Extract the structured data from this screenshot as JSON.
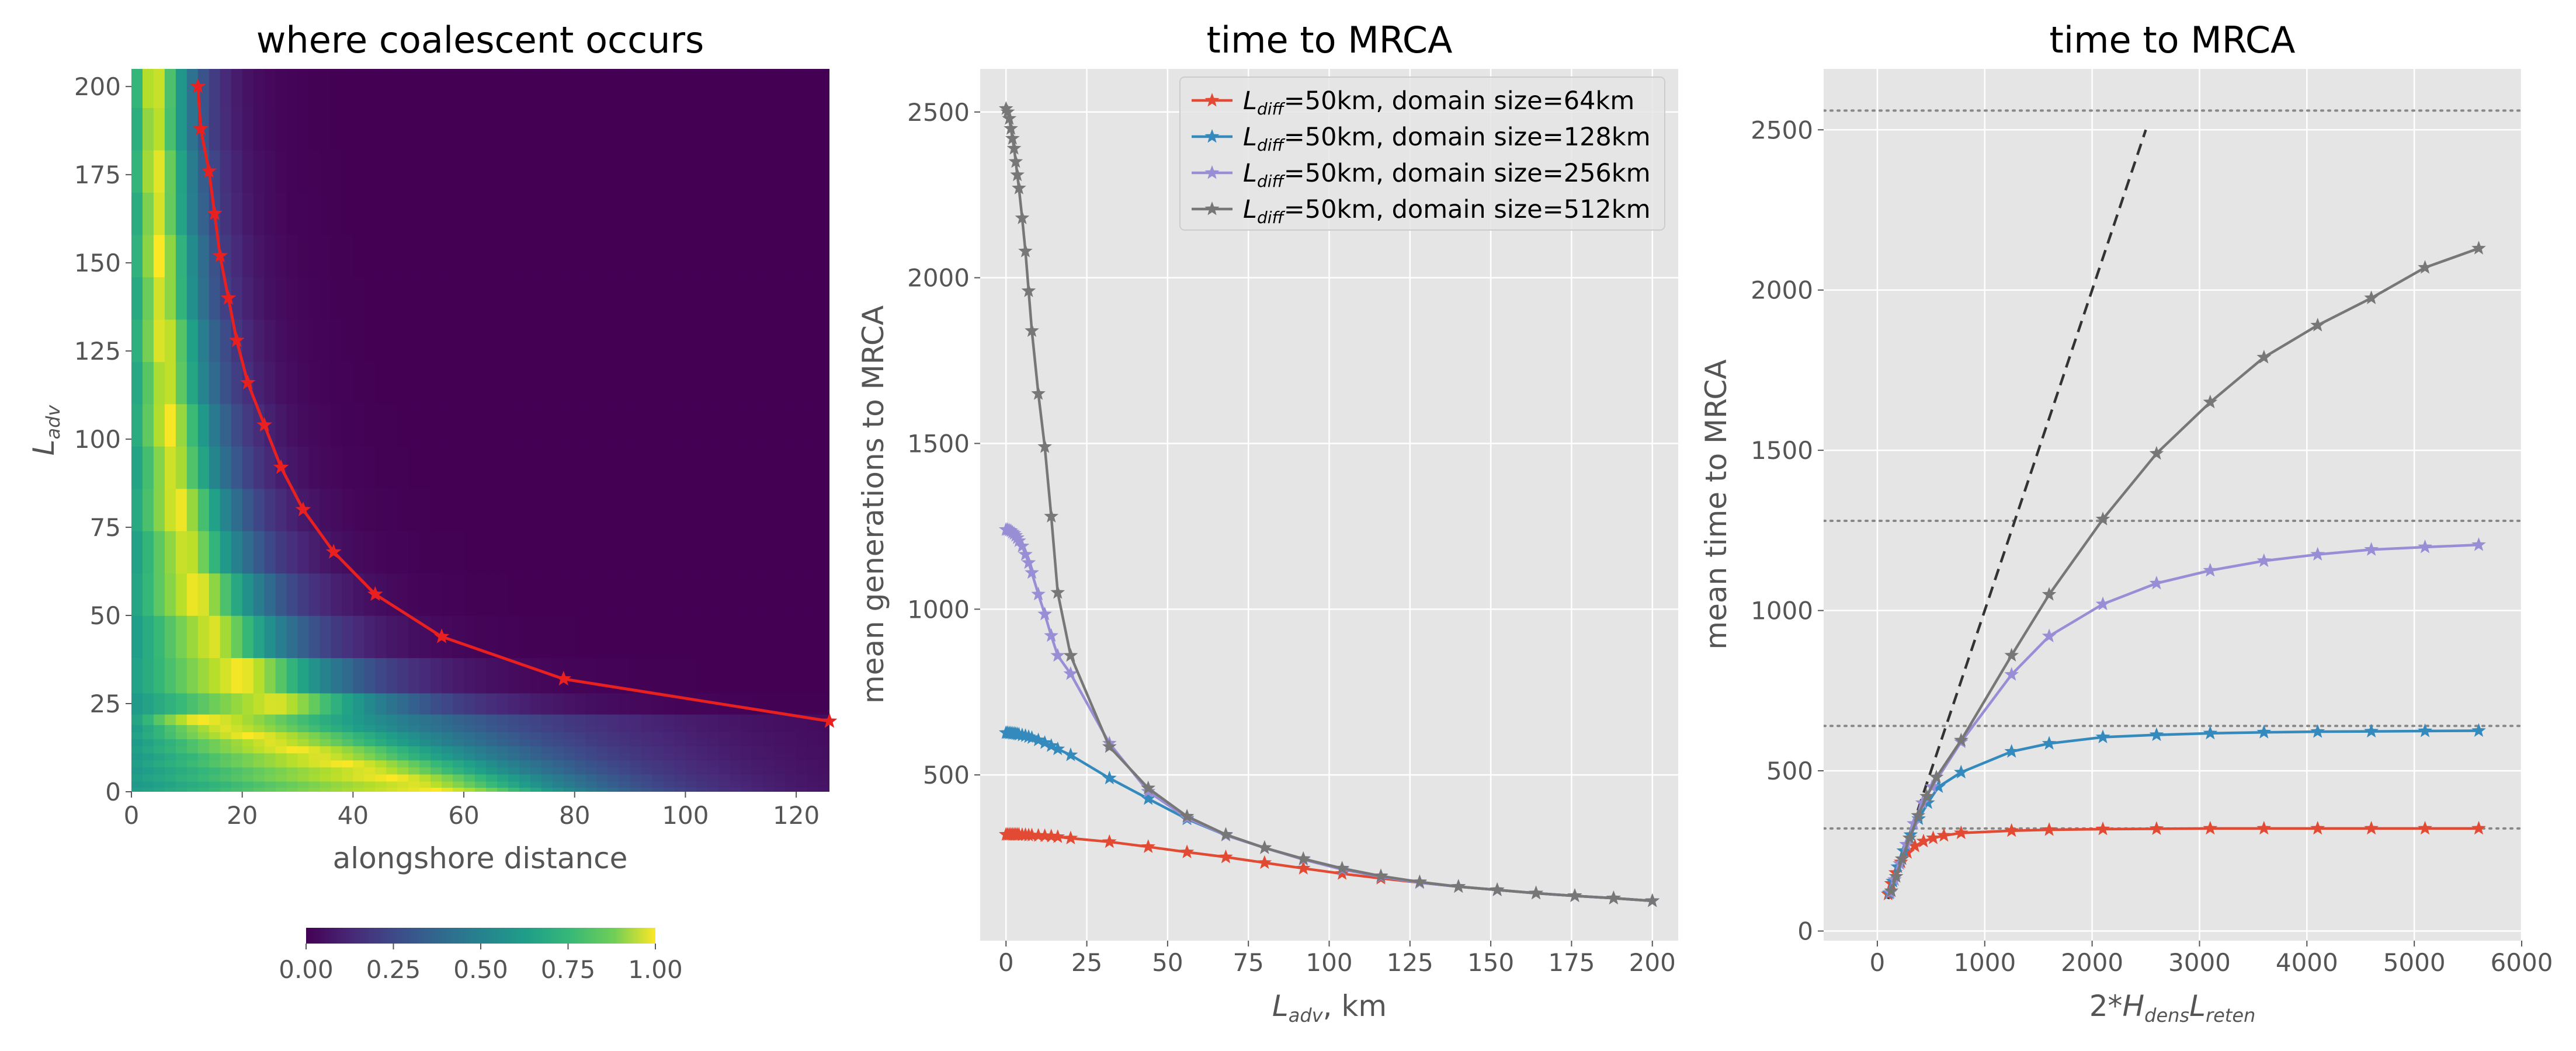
{
  "chart_data": [
    {
      "type": "heatmap",
      "title": "where coalescent occurs",
      "xlabel": "alongshore distance",
      "ylabel": {
        "main": "L",
        "sub": "adv"
      },
      "xlim": [
        0,
        126
      ],
      "ylim": [
        0,
        205
      ],
      "xticks": [
        "0",
        "20",
        "40",
        "60",
        "80",
        "100",
        "120"
      ],
      "yticks": [
        "0",
        "25",
        "50",
        "75",
        "100",
        "125",
        "150",
        "175",
        "200"
      ],
      "colormap": "viridis",
      "colorbar": {
        "ticks": [
          "0.00",
          "0.25",
          "0.50",
          "0.75",
          "1.00"
        ],
        "range": [
          0,
          1
        ]
      },
      "rows_L_adv": [
        0.5,
        2,
        4,
        6,
        8,
        10,
        12,
        14,
        16,
        18,
        20,
        24,
        32,
        44,
        56,
        68,
        80,
        92,
        104,
        116,
        128,
        140,
        152,
        164,
        176,
        188,
        200
      ],
      "overlay_line": {
        "color": "#e8201f",
        "x": [
          12,
          12.5,
          14,
          15,
          16,
          17.5,
          19,
          21,
          24,
          27,
          31,
          36.5,
          44,
          56,
          78,
          126
        ],
        "y": [
          200,
          188,
          176,
          164,
          152,
          140,
          128,
          116,
          104,
          92,
          80,
          68,
          56,
          44,
          32,
          20
        ]
      }
    },
    {
      "type": "line",
      "title": "time to MRCA",
      "xlabel": {
        "main": "L",
        "sub": "adv",
        "rest": ", km"
      },
      "ylabel": "mean generations to MRCA",
      "xlim": [
        -8,
        208
      ],
      "ylim": [
        0,
        2630
      ],
      "xticks": [
        "0",
        "25",
        "50",
        "75",
        "100",
        "125",
        "150",
        "175",
        "200"
      ],
      "yticks": [
        "500",
        "1000",
        "1500",
        "2000",
        "2500"
      ],
      "legend": {
        "position": "top-right"
      },
      "series": [
        {
          "name": {
            "main": "L",
            "sub": "diff",
            "rest": "=50km, domain size=64km"
          },
          "color": "#e24a33",
          "x": [
            0,
            0.5,
            1,
            1.5,
            2,
            2.5,
            3,
            3.5,
            4,
            5,
            6,
            7,
            8,
            10,
            12,
            14,
            16,
            20,
            32,
            44,
            56,
            68,
            80,
            92,
            104,
            116,
            128,
            140,
            152,
            164,
            176,
            188,
            200
          ],
          "y": [
            320,
            320,
            320,
            320,
            320,
            320,
            320,
            320,
            320,
            319,
            319,
            318,
            318,
            317,
            316,
            315,
            313,
            309,
            298,
            283,
            267,
            252,
            235,
            218,
            202,
            188,
            175,
            163,
            153,
            143,
            135,
            128,
            120
          ]
        },
        {
          "name": {
            "main": "L",
            "sub": "diff",
            "rest": "=50km, domain size=128km"
          },
          "color": "#348abd",
          "x": [
            0,
            0.5,
            1,
            1.5,
            2,
            2.5,
            3,
            3.5,
            4,
            5,
            6,
            7,
            8,
            10,
            12,
            14,
            16,
            20,
            32,
            44,
            56,
            68,
            80,
            92,
            104,
            116,
            128,
            140,
            152,
            164,
            176,
            188,
            200
          ],
          "y": [
            627,
            627,
            626,
            626,
            625,
            625,
            624,
            623,
            622,
            620,
            618,
            615,
            612,
            605,
            597,
            588,
            578,
            560,
            490,
            428,
            367,
            318,
            280,
            245,
            215,
            193,
            175,
            163,
            153,
            143,
            135,
            128,
            120
          ]
        },
        {
          "name": {
            "main": "L",
            "sub": "diff",
            "rest": "=50km, domain size=256km"
          },
          "color": "#988ed5",
          "x": [
            0,
            0.5,
            1,
            1.5,
            2,
            2.5,
            3,
            3.5,
            4,
            5,
            6,
            7,
            8,
            10,
            12,
            14,
            16,
            20,
            32,
            44,
            56,
            68,
            80,
            92,
            104,
            116,
            128,
            140,
            152,
            164,
            176,
            188,
            200
          ],
          "y": [
            1240,
            1240,
            1238,
            1236,
            1232,
            1228,
            1222,
            1215,
            1206,
            1190,
            1165,
            1140,
            1110,
            1045,
            985,
            920,
            860,
            805,
            595,
            450,
            370,
            318,
            280,
            245,
            215,
            193,
            175,
            163,
            153,
            143,
            135,
            128,
            120
          ]
        },
        {
          "name": {
            "main": "L",
            "sub": "diff",
            "rest": "=50km, domain size=512km"
          },
          "color": "#777777",
          "x": [
            0,
            0.5,
            1,
            1.5,
            2,
            2.5,
            3,
            3.5,
            4,
            5,
            6,
            7,
            8,
            10,
            12,
            14,
            16,
            20,
            32,
            44,
            56,
            68,
            80,
            92,
            104,
            116,
            128,
            140,
            152,
            164,
            176,
            188,
            200
          ],
          "y": [
            2510,
            2500,
            2480,
            2450,
            2420,
            2390,
            2350,
            2310,
            2270,
            2180,
            2080,
            1960,
            1840,
            1650,
            1490,
            1280,
            1050,
            860,
            585,
            460,
            375,
            320,
            280,
            247,
            218,
            195,
            177,
            163,
            153,
            143,
            135,
            128,
            120
          ]
        }
      ]
    },
    {
      "type": "line",
      "title": "time to MRCA",
      "xlabel": {
        "pre": "2*",
        "a": "H",
        "asub": "dens",
        "b": "L",
        "bsub": "reten"
      },
      "ylabel": "mean time to MRCA",
      "xlim": [
        -500,
        6000
      ],
      "ylim": [
        -30,
        2690
      ],
      "xticks": [
        "0",
        "1000",
        "2000",
        "3000",
        "4000",
        "5000",
        "6000"
      ],
      "yticks": [
        "0",
        "500",
        "1000",
        "1500",
        "2000",
        "2500"
      ],
      "dotted_hlines": [
        320,
        640,
        1280,
        2560
      ],
      "dashed_line": {
        "x": [
          100,
          2500
        ],
        "y": [
          100,
          2500
        ]
      },
      "series": [
        {
          "color": "#e24a33",
          "x": [
            100,
            130,
            170,
            220,
            280,
            350,
            430,
            520,
            620,
            780,
            1250,
            1600,
            2100,
            2600,
            3100,
            3600,
            4100,
            4600,
            5100,
            5600
          ],
          "y": [
            115,
            148,
            182,
            215,
            245,
            265,
            280,
            290,
            298,
            306,
            313,
            316,
            318,
            319,
            320,
            320,
            320,
            320,
            320,
            320
          ]
        },
        {
          "color": "#348abd",
          "x": [
            110,
            145,
            190,
            245,
            310,
            385,
            470,
            570,
            780,
            1250,
            1600,
            2100,
            2600,
            3100,
            3600,
            4100,
            4600,
            5100,
            5600
          ],
          "y": [
            118,
            155,
            200,
            250,
            300,
            350,
            400,
            450,
            495,
            560,
            585,
            605,
            612,
            617,
            620,
            622,
            623,
            624,
            625
          ]
        },
        {
          "color": "#988ed5",
          "x": [
            120,
            160,
            210,
            270,
            340,
            420,
            510,
            780,
            1250,
            1600,
            2100,
            2600,
            3100,
            3600,
            4100,
            4600,
            5100,
            5600
          ],
          "y": [
            120,
            160,
            210,
            270,
            335,
            400,
            450,
            590,
            800,
            920,
            1020,
            1085,
            1125,
            1155,
            1175,
            1190,
            1198,
            1205
          ]
        },
        {
          "color": "#777777",
          "x": [
            130,
            175,
            230,
            300,
            380,
            460,
            550,
            780,
            1250,
            1600,
            2100,
            2600,
            3100,
            3600,
            4100,
            4600,
            5100,
            5600
          ],
          "y": [
            125,
            170,
            225,
            290,
            360,
            420,
            480,
            595,
            860,
            1050,
            1285,
            1490,
            1650,
            1790,
            1890,
            1975,
            2070,
            2130
          ]
        }
      ]
    }
  ]
}
